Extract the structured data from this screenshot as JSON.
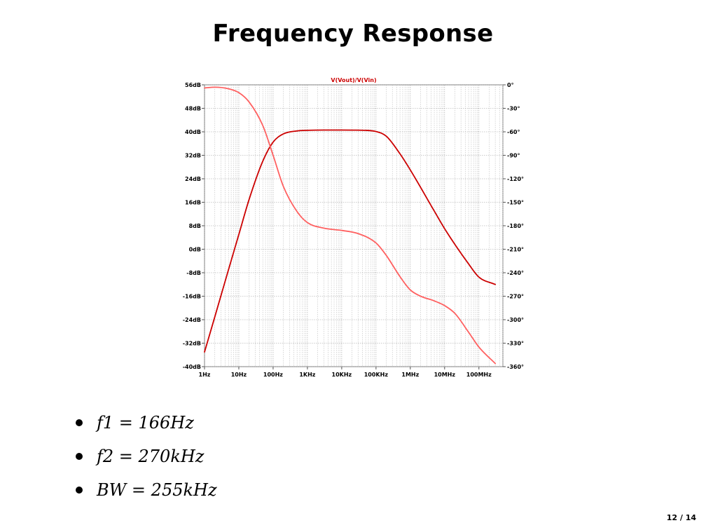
{
  "slide": {
    "title": "Frequency Response",
    "page": "12 / 14"
  },
  "bullets": [
    "f1 = 166Hz",
    "f2 = 270kHz",
    "BW = 255kHz"
  ],
  "chart_data": {
    "type": "line",
    "title": "V(Vout)/V(Vin)",
    "xscale": "log",
    "xlim": [
      1,
      500000000
    ],
    "x_tick_values": [
      1,
      10,
      100,
      1000,
      10000,
      100000,
      1000000,
      10000000,
      100000000
    ],
    "x_tick_labels": [
      "1Hz",
      "10Hz",
      "100Hz",
      "1KHz",
      "10KHz",
      "100KHz",
      "1MHz",
      "10MHz",
      "100MHz"
    ],
    "y_left": {
      "lim": [
        -40,
        56
      ],
      "ticks": [
        56,
        48,
        40,
        32,
        24,
        16,
        8,
        0,
        -8,
        -16,
        -24,
        -32,
        -40
      ],
      "tick_labels": [
        "56dB",
        "48dB",
        "40dB",
        "32dB",
        "24dB",
        "16dB",
        "8dB",
        "0dB",
        "-8dB",
        "-16dB",
        "-24dB",
        "-32dB",
        "-40dB"
      ]
    },
    "y_right": {
      "lim": [
        -360,
        0
      ],
      "ticks": [
        0,
        -30,
        -60,
        -90,
        -120,
        -150,
        -180,
        -210,
        -240,
        -270,
        -300,
        -330,
        -360
      ],
      "tick_labels": [
        "0°",
        "-30°",
        "-60°",
        "-90°",
        "-120°",
        "-150°",
        "-180°",
        "-210°",
        "-240°",
        "-270°",
        "-300°",
        "-330°",
        "-360°"
      ]
    },
    "grid": true,
    "series": [
      {
        "axis": "left",
        "color": "#cc0000",
        "x": [
          1,
          2,
          5,
          10,
          20,
          50,
          100,
          200,
          500,
          1000,
          3000,
          10000,
          50000,
          100000,
          200000,
          500000,
          1000000,
          5000000,
          10000000,
          50000000,
          100000000,
          300000000
        ],
        "y": [
          -35,
          -23,
          -7,
          5,
          17,
          30,
          36.5,
          39.3,
          40.3,
          40.5,
          40.6,
          40.6,
          40.5,
          40.1,
          38.5,
          32.5,
          27,
          13,
          7,
          -5,
          -9.5,
          -12
        ]
      },
      {
        "axis": "right",
        "color": "#ff6060",
        "x": [
          1,
          2,
          5,
          10,
          20,
          50,
          100,
          200,
          500,
          1000,
          3000,
          10000,
          30000,
          100000,
          200000,
          500000,
          1000000,
          2000000,
          5000000,
          10000000,
          20000000,
          50000000,
          100000000,
          300000000
        ],
        "y": [
          -4,
          -3,
          -5,
          -10,
          -22,
          -52,
          -90,
          -130,
          -162,
          -176,
          -183,
          -186,
          -190,
          -202,
          -218,
          -245,
          -262,
          -270,
          -276,
          -282,
          -292,
          -316,
          -335,
          -356
        ]
      }
    ]
  }
}
